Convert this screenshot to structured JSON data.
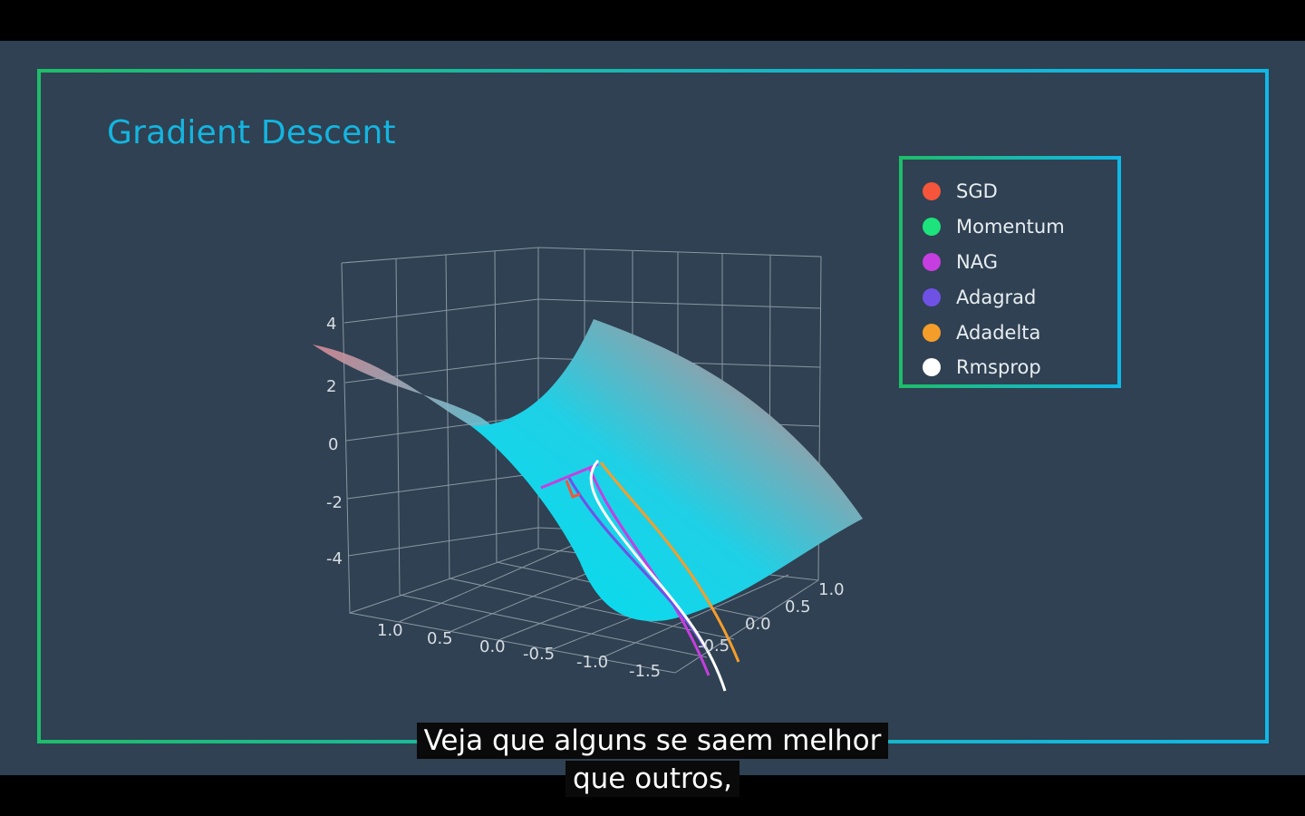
{
  "subtitles": {
    "line1": "Veja que alguns se saem melhor",
    "line2": "que outros,"
  },
  "chart_data": {
    "type": "surface-3d",
    "title": "Gradient Descent",
    "z_ticks": [
      "4",
      "2",
      "0",
      "-2",
      "-4"
    ],
    "x_ticks": [
      "1.0",
      "0.5",
      "0.0",
      "-0.5",
      "-1.0",
      "-1.5"
    ],
    "y_ticks": [
      "1.0",
      "0.5",
      "0.0",
      "-0.5"
    ],
    "grid": true,
    "legend_position": "top-right",
    "series": [
      {
        "name": "SGD",
        "color": "#f4553b"
      },
      {
        "name": "Momentum",
        "color": "#1de37c"
      },
      {
        "name": "NAG",
        "color": "#c63ee0"
      },
      {
        "name": "Adagrad",
        "color": "#7051e6"
      },
      {
        "name": "Adadelta",
        "color": "#f59d2a"
      },
      {
        "name": "Rmsprop",
        "color": "#ffffff"
      }
    ]
  }
}
